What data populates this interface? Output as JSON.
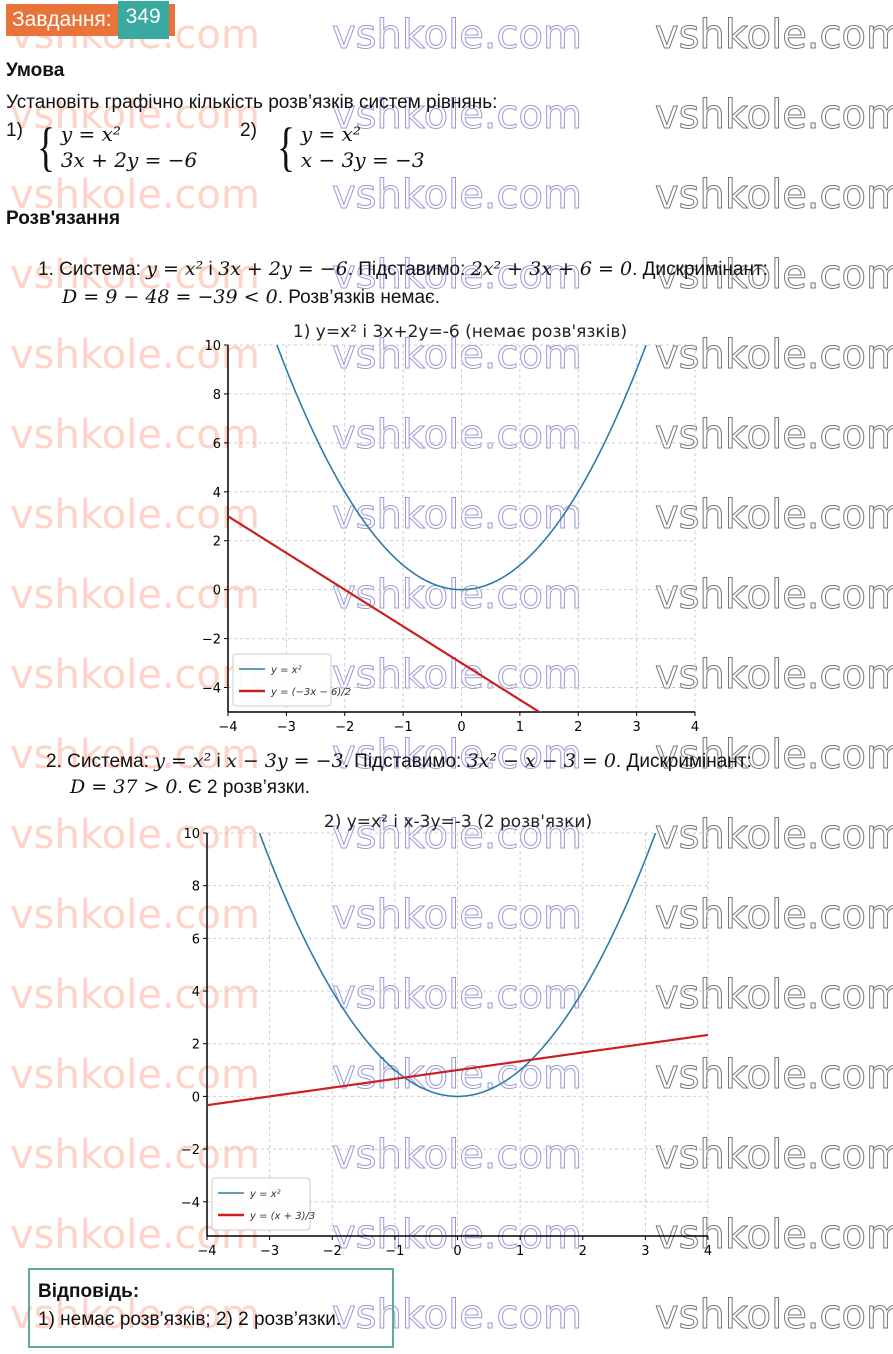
{
  "task": {
    "label": "Завдання:",
    "number": "349",
    "colors": {
      "label_bg": "#e8743b",
      "number_bg": "#3aa99f"
    }
  },
  "condition": {
    "heading": "Умова",
    "text": "Установіть графічно кількість розв’язків систем рівнянь:",
    "systems": [
      {
        "num": "1)",
        "eq1": "y = x²",
        "eq2": "3x + 2y = −6"
      },
      {
        "num": "2)",
        "eq1": "y = x²",
        "eq2": "x − 3y = −3"
      }
    ]
  },
  "solution": {
    "heading": "Розв'язання",
    "step1": {
      "a": "1. Система: ",
      "b": "y = x²",
      "c": " і ",
      "d": "3x + 2y = −6",
      "e": ". Підставимо: ",
      "f": "2x² + 3x + 6 = 0",
      "g": ". Дискримінант:",
      "h": "D = 9 − 48 = −39 < 0",
      "i": ". Розв’язків немає."
    },
    "step2": {
      "a": "2. Система: ",
      "b": "y = x²",
      "c": " і ",
      "d": "x − 3y = −3",
      "e": ". Підставимо: ",
      "f": "3x² − x − 3 = 0",
      "g": ". Дискримінант:",
      "h": "D = 37 > 0",
      "i": ". Є 2 розв’язки."
    }
  },
  "answer": {
    "heading": "Відповідь:",
    "text": "1) немає розв’язків; 2) 2 розв’язки."
  },
  "watermark": "vshkole.com",
  "chart_data": [
    {
      "type": "line",
      "title": "1) y=x² і 3x+2y=-6 (немає розв'язків)",
      "xlim": [
        -4,
        4
      ],
      "ylim": [
        -5,
        10
      ],
      "xticks": [
        "−4",
        "−3",
        "−2",
        "−1",
        "0",
        "1",
        "2",
        "3",
        "4"
      ],
      "yticks": [
        "−4",
        "−2",
        "0",
        "2",
        "4",
        "6",
        "8",
        "10"
      ],
      "grid": true,
      "legend": "bottom-left",
      "series": [
        {
          "name": "y = x²",
          "formula": "x^2",
          "color": "#2e7ca6"
        },
        {
          "name": "y = (−3x − 6)/2",
          "formula": "(-3x-6)/2",
          "color": "#cc2020"
        }
      ]
    },
    {
      "type": "line",
      "title": "2) y=x² і x-3y=-3 (2 розв'язки)",
      "xlim": [
        -4,
        4
      ],
      "ylim": [
        -5.3,
        10
      ],
      "xticks": [
        "−4",
        "−3",
        "−2",
        "−1",
        "0",
        "1",
        "2",
        "3",
        "4"
      ],
      "yticks": [
        "−4",
        "−2",
        "0",
        "2",
        "4",
        "6",
        "8",
        "10"
      ],
      "grid": true,
      "legend": "bottom-left",
      "series": [
        {
          "name": "y = x²",
          "formula": "x^2",
          "color": "#2e7ca6"
        },
        {
          "name": "y = (x + 3)/3",
          "formula": "(x+3)/3",
          "color": "#cc2020"
        }
      ]
    }
  ]
}
